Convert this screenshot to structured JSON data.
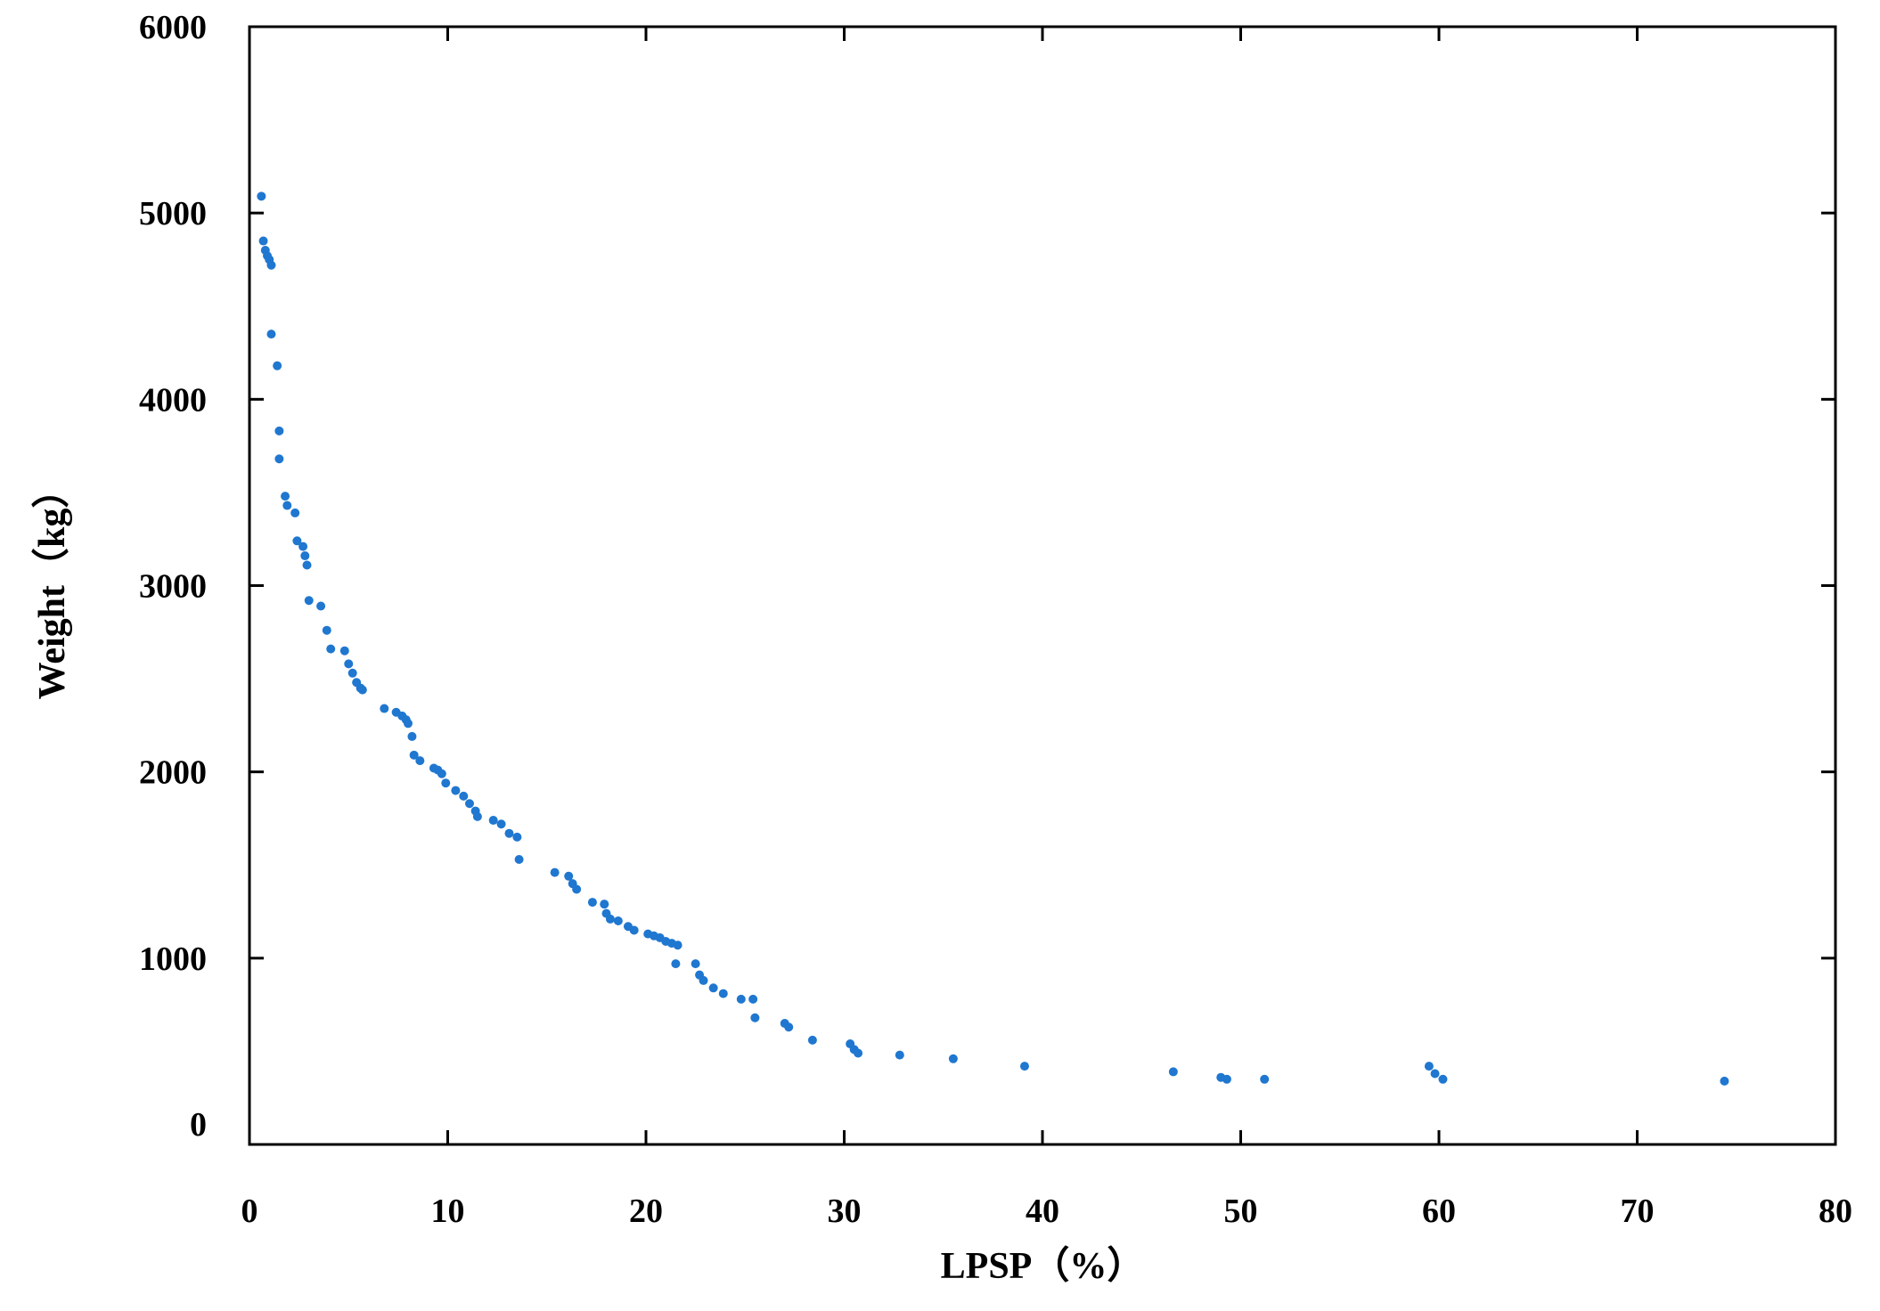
{
  "chart_data": {
    "type": "scatter",
    "title": "",
    "xlabel": "LPSP（%）",
    "ylabel": "Weight（kg）",
    "xlim": [
      0,
      80
    ],
    "ylim": [
      0,
      6000
    ],
    "x_ticks": [
      0,
      10,
      20,
      30,
      40,
      50,
      60,
      70,
      80
    ],
    "y_ticks": [
      0,
      1000,
      2000,
      3000,
      4000,
      5000,
      6000
    ],
    "grid": false,
    "legend": "none",
    "marker_color": "#1f77d0",
    "series": [
      {
        "points": [
          [
            0.6,
            5090
          ],
          [
            0.7,
            4850
          ],
          [
            0.8,
            4800
          ],
          [
            0.9,
            4770
          ],
          [
            1.0,
            4750
          ],
          [
            1.1,
            4720
          ],
          [
            1.1,
            4350
          ],
          [
            1.4,
            4180
          ],
          [
            1.5,
            3830
          ],
          [
            1.5,
            3680
          ],
          [
            1.8,
            3480
          ],
          [
            1.9,
            3430
          ],
          [
            2.3,
            3390
          ],
          [
            2.4,
            3240
          ],
          [
            2.7,
            3210
          ],
          [
            2.8,
            3160
          ],
          [
            2.9,
            3110
          ],
          [
            3.0,
            2920
          ],
          [
            3.6,
            2890
          ],
          [
            3.9,
            2760
          ],
          [
            4.1,
            2660
          ],
          [
            4.8,
            2650
          ],
          [
            5.0,
            2580
          ],
          [
            5.2,
            2530
          ],
          [
            5.4,
            2480
          ],
          [
            5.6,
            2450
          ],
          [
            5.7,
            2440
          ],
          [
            6.8,
            2340
          ],
          [
            7.4,
            2320
          ],
          [
            7.7,
            2300
          ],
          [
            7.9,
            2280
          ],
          [
            8.0,
            2260
          ],
          [
            8.2,
            2190
          ],
          [
            8.3,
            2090
          ],
          [
            8.6,
            2060
          ],
          [
            9.3,
            2020
          ],
          [
            9.5,
            2010
          ],
          [
            9.7,
            1990
          ],
          [
            9.9,
            1940
          ],
          [
            10.4,
            1900
          ],
          [
            10.8,
            1870
          ],
          [
            11.1,
            1830
          ],
          [
            11.4,
            1790
          ],
          [
            11.5,
            1760
          ],
          [
            12.3,
            1740
          ],
          [
            12.7,
            1720
          ],
          [
            13.1,
            1670
          ],
          [
            13.5,
            1650
          ],
          [
            13.6,
            1530
          ],
          [
            15.4,
            1460
          ],
          [
            16.1,
            1440
          ],
          [
            16.3,
            1400
          ],
          [
            16.5,
            1370
          ],
          [
            17.3,
            1300
          ],
          [
            17.9,
            1290
          ],
          [
            18.0,
            1240
          ],
          [
            18.2,
            1210
          ],
          [
            18.6,
            1200
          ],
          [
            19.1,
            1170
          ],
          [
            19.4,
            1150
          ],
          [
            20.1,
            1130
          ],
          [
            20.4,
            1120
          ],
          [
            20.7,
            1110
          ],
          [
            21.0,
            1090
          ],
          [
            21.3,
            1080
          ],
          [
            21.6,
            1070
          ],
          [
            21.5,
            970
          ],
          [
            22.5,
            970
          ],
          [
            22.7,
            910
          ],
          [
            22.9,
            880
          ],
          [
            23.4,
            840
          ],
          [
            23.9,
            810
          ],
          [
            24.8,
            780
          ],
          [
            25.4,
            780
          ],
          [
            25.5,
            680
          ],
          [
            27.0,
            650
          ],
          [
            27.2,
            630
          ],
          [
            28.4,
            560
          ],
          [
            30.3,
            540
          ],
          [
            30.5,
            510
          ],
          [
            30.7,
            490
          ],
          [
            32.8,
            480
          ],
          [
            35.5,
            460
          ],
          [
            39.1,
            420
          ],
          [
            46.6,
            390
          ],
          [
            49.0,
            360
          ],
          [
            49.3,
            350
          ],
          [
            51.2,
            350
          ],
          [
            59.5,
            420
          ],
          [
            59.8,
            380
          ],
          [
            60.2,
            350
          ],
          [
            74.4,
            340
          ]
        ]
      }
    ]
  }
}
